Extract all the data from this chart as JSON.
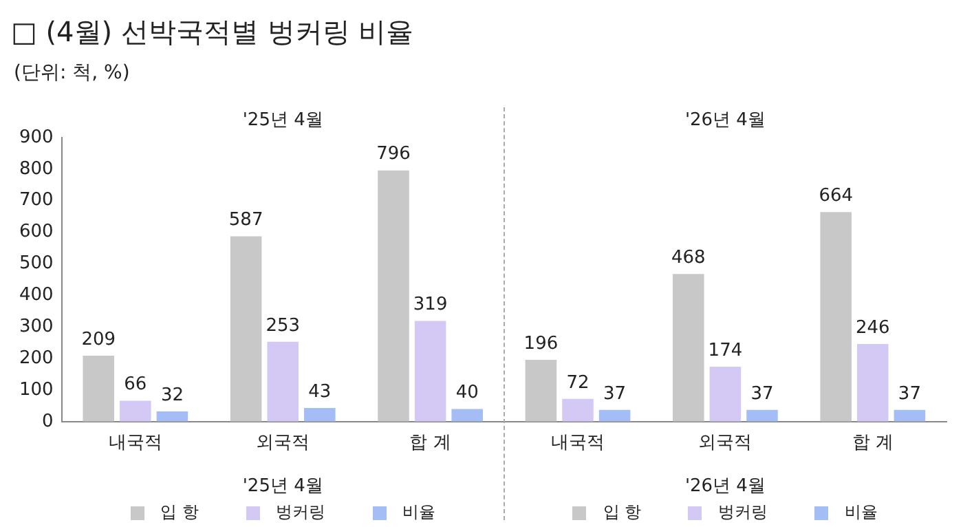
{
  "chart_data": {
    "type": "bar",
    "title": "□ (4월) 선박국적별 벙커링 비율",
    "annotations": [
      "(단위: 척, %)",
      "'25년 4월",
      "'26년 4월"
    ],
    "categories": [
      "내국적",
      "외국적",
      "합 계",
      "내국적",
      "외국적",
      "합 계"
    ],
    "series": [
      {
        "name": "입 항",
        "color": "#c8c8c8",
        "values": [
          209,
          587,
          796,
          196,
          468,
          664
        ]
      },
      {
        "name": "벙커링",
        "color": "#d4c8f5",
        "values": [
          66,
          253,
          319,
          72,
          174,
          246
        ]
      },
      {
        "name": "비율",
        "color": "#a4bef5",
        "values": [
          32,
          43,
          40,
          37,
          37,
          37
        ]
      }
    ],
    "ylim": [
      0,
      900
    ],
    "yticks": [
      0,
      100,
      200,
      300,
      400,
      500,
      600,
      700,
      800,
      900
    ],
    "grid": false,
    "data_labels": true,
    "legend": "bottom"
  }
}
